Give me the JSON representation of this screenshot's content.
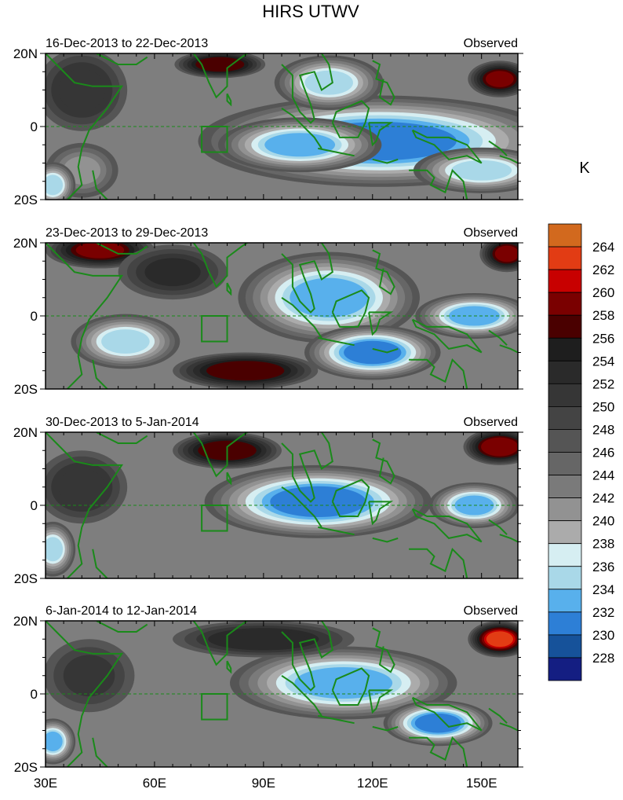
{
  "title": "HIRS UTWV",
  "colorbar": {
    "unit": "K",
    "levels": [
      264,
      262,
      260,
      258,
      256,
      254,
      252,
      250,
      248,
      246,
      244,
      242,
      240,
      238,
      236,
      234,
      232,
      230,
      228
    ],
    "colors": [
      "#d2691e",
      "#e23c14",
      "#c80000",
      "#7a0000",
      "#4a0000",
      "#1e1e1e",
      "#2a2a2a",
      "#363636",
      "#444444",
      "#555555",
      "#666666",
      "#7a7a7a",
      "#929292",
      "#ababab",
      "#d6eef2",
      "#a9d8e8",
      "#58b0ec",
      "#2d7fd6",
      "#16529a",
      "#141e82"
    ]
  },
  "chart_data": [
    {
      "type": "heatmap",
      "period": "16-Dec-2013 to 22-Dec-2013",
      "label": "Observed",
      "xticks": [
        "30E",
        "60E",
        "90E",
        "120E",
        "150E"
      ],
      "yticks": [
        "20N",
        "0",
        "20S"
      ],
      "blobs": [
        {
          "lon": 122,
          "lat": -4,
          "rx": 40,
          "ry": 10,
          "value": 231
        },
        {
          "lon": 100,
          "lat": -5,
          "rx": 18,
          "ry": 6,
          "value": 233
        },
        {
          "lon": 108,
          "lat": 12,
          "rx": 12,
          "ry": 6,
          "value": 234
        },
        {
          "lon": 150,
          "lat": -12,
          "rx": 15,
          "ry": 5,
          "value": 235
        },
        {
          "lon": 78,
          "lat": 17,
          "rx": 10,
          "ry": 3,
          "value": 257
        },
        {
          "lon": 155,
          "lat": 13,
          "rx": 7,
          "ry": 4,
          "value": 258
        },
        {
          "lon": 40,
          "lat": 10,
          "rx": 10,
          "ry": 9,
          "value": 251
        },
        {
          "lon": 40,
          "lat": -12,
          "rx": 8,
          "ry": 6,
          "value": 240
        },
        {
          "lon": 32,
          "lat": -16,
          "rx": 5,
          "ry": 5,
          "value": 235
        }
      ]
    },
    {
      "type": "heatmap",
      "period": "23-Dec-2013 to 29-Dec-2013",
      "label": "Observed",
      "xticks": [
        "30E",
        "60E",
        "90E",
        "120E",
        "150E"
      ],
      "yticks": [
        "20N",
        "0",
        "20S"
      ],
      "blobs": [
        {
          "lon": 108,
          "lat": 5,
          "rx": 20,
          "ry": 10,
          "value": 232
        },
        {
          "lon": 120,
          "lat": -10,
          "rx": 15,
          "ry": 6,
          "value": 231
        },
        {
          "lon": 148,
          "lat": 0,
          "rx": 13,
          "ry": 5,
          "value": 232
        },
        {
          "lon": 52,
          "lat": -7,
          "rx": 12,
          "ry": 6,
          "value": 235
        },
        {
          "lon": 85,
          "lat": -15,
          "rx": 16,
          "ry": 4,
          "value": 257
        },
        {
          "lon": 45,
          "lat": 18,
          "rx": 12,
          "ry": 4,
          "value": 258
        },
        {
          "lon": 157,
          "lat": 17,
          "rx": 6,
          "ry": 4,
          "value": 258
        },
        {
          "lon": 65,
          "lat": 12,
          "rx": 12,
          "ry": 6,
          "value": 252
        }
      ]
    },
    {
      "type": "heatmap",
      "period": "30-Dec-2013 to 5-Jan-2014",
      "label": "Observed",
      "xticks": [
        "30E",
        "60E",
        "90E",
        "120E",
        "150E"
      ],
      "yticks": [
        "20N",
        "0",
        "20S"
      ],
      "blobs": [
        {
          "lon": 105,
          "lat": 1,
          "rx": 25,
          "ry": 8,
          "value": 231
        },
        {
          "lon": 148,
          "lat": 0,
          "rx": 10,
          "ry": 5,
          "value": 232
        },
        {
          "lon": 32,
          "lat": -12,
          "rx": 5,
          "ry": 6,
          "value": 234
        },
        {
          "lon": 80,
          "lat": 15,
          "rx": 12,
          "ry": 4,
          "value": 257
        },
        {
          "lon": 155,
          "lat": 16,
          "rx": 8,
          "ry": 4,
          "value": 259
        },
        {
          "lon": 40,
          "lat": 5,
          "rx": 10,
          "ry": 8,
          "value": 251
        }
      ]
    },
    {
      "type": "heatmap",
      "period": "6-Jan-2014 to 12-Jan-2014",
      "label": "Observed",
      "xticks": [
        "30E",
        "60E",
        "90E",
        "120E",
        "150E"
      ],
      "yticks": [
        "20N",
        "0",
        "20S"
      ],
      "blobs": [
        {
          "lon": 112,
          "lat": 3,
          "rx": 25,
          "ry": 8,
          "value": 232
        },
        {
          "lon": 138,
          "lat": -8,
          "rx": 12,
          "ry": 5,
          "value": 230
        },
        {
          "lon": 32,
          "lat": -13,
          "rx": 5,
          "ry": 5,
          "value": 232
        },
        {
          "lon": 155,
          "lat": 15,
          "rx": 7,
          "ry": 4,
          "value": 262
        },
        {
          "lon": 90,
          "lat": 15,
          "rx": 20,
          "ry": 4,
          "value": 253
        },
        {
          "lon": 42,
          "lat": 5,
          "rx": 10,
          "ry": 8,
          "value": 250
        }
      ]
    }
  ]
}
